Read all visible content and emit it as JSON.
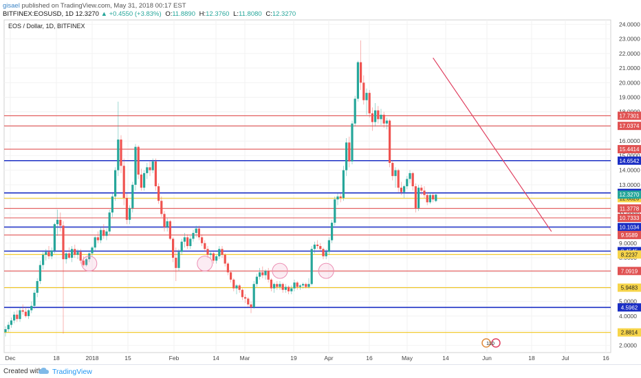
{
  "header": {
    "author": "gisael",
    "published": "published on TradingView.com, May 31, 2018 00:17 EST",
    "symbol": "BITFINEX:EOSUSD, 1D",
    "last": "12.3270",
    "change": "+0.4550 (+3.83%)",
    "o_label": "O:",
    "o_value": "11.8890",
    "h_label": "H:",
    "h_value": "12.3760",
    "l_label": "L:",
    "l_value": "11.8080",
    "c_label": "C:",
    "c_value": "12.3270"
  },
  "chart_data": {
    "type": "candlestick",
    "title": "EOS / Dollar, 1D, BITFINEX",
    "ylim": [
      1.5,
      24.3
    ],
    "y_ticks": [
      "2.0000",
      "3.0000",
      "4.0000",
      "5.0000",
      "6.0000",
      "7.0000",
      "8.0000",
      "9.0000",
      "10.0000",
      "11.0000",
      "12.0000",
      "13.0000",
      "14.0000",
      "15.0000",
      "16.0000",
      "17.0000",
      "18.0000",
      "19.0000",
      "20.0000",
      "21.0000",
      "22.0000",
      "23.0000",
      "24.0000"
    ],
    "x_ticks": [
      "Dec",
      "18",
      "2018",
      "15",
      "Feb",
      "14",
      "Mar",
      "19",
      "Apr",
      "16",
      "May",
      "14",
      "Jun",
      "18",
      "Jul",
      "16"
    ],
    "candles": [
      {
        "o": 2.9,
        "h": 3.3,
        "l": 2.6,
        "c": 3.1
      },
      {
        "o": 3.1,
        "h": 3.6,
        "l": 2.9,
        "c": 3.4
      },
      {
        "o": 3.4,
        "h": 3.9,
        "l": 3.2,
        "c": 3.7
      },
      {
        "o": 3.7,
        "h": 4.3,
        "l": 3.5,
        "c": 4.1
      },
      {
        "o": 4.1,
        "h": 4.4,
        "l": 3.6,
        "c": 3.8
      },
      {
        "o": 3.8,
        "h": 4.6,
        "l": 3.6,
        "c": 4.4
      },
      {
        "o": 4.4,
        "h": 4.8,
        "l": 4.1,
        "c": 4.3
      },
      {
        "o": 4.3,
        "h": 4.6,
        "l": 3.9,
        "c": 4.0
      },
      {
        "o": 4.0,
        "h": 4.5,
        "l": 3.8,
        "c": 4.4
      },
      {
        "o": 4.4,
        "h": 5.0,
        "l": 4.2,
        "c": 4.7
      },
      {
        "o": 4.7,
        "h": 5.8,
        "l": 4.5,
        "c": 5.6
      },
      {
        "o": 5.6,
        "h": 6.6,
        "l": 5.3,
        "c": 6.4
      },
      {
        "o": 6.4,
        "h": 7.8,
        "l": 6.2,
        "c": 7.5
      },
      {
        "o": 7.5,
        "h": 8.4,
        "l": 7.2,
        "c": 8.2
      },
      {
        "o": 8.2,
        "h": 8.6,
        "l": 7.8,
        "c": 8.4
      },
      {
        "o": 8.4,
        "h": 8.8,
        "l": 7.9,
        "c": 8.1
      },
      {
        "o": 8.1,
        "h": 8.7,
        "l": 7.9,
        "c": 8.5
      },
      {
        "o": 8.5,
        "h": 10.4,
        "l": 8.3,
        "c": 10.3
      },
      {
        "o": 10.3,
        "h": 11.3,
        "l": 9.5,
        "c": 10.6
      },
      {
        "o": 10.6,
        "h": 11.1,
        "l": 9.8,
        "c": 10.2
      },
      {
        "o": 10.2,
        "h": 10.5,
        "l": 2.8,
        "c": 7.9
      },
      {
        "o": 7.9,
        "h": 8.4,
        "l": 7.6,
        "c": 8.3
      },
      {
        "o": 8.3,
        "h": 8.7,
        "l": 7.9,
        "c": 8.0
      },
      {
        "o": 8.0,
        "h": 8.8,
        "l": 7.7,
        "c": 8.6
      },
      {
        "o": 8.6,
        "h": 8.9,
        "l": 8.0,
        "c": 8.2
      },
      {
        "o": 8.2,
        "h": 8.6,
        "l": 7.9,
        "c": 8.4
      },
      {
        "o": 8.4,
        "h": 8.6,
        "l": 7.6,
        "c": 7.8
      },
      {
        "o": 7.8,
        "h": 8.1,
        "l": 7.4,
        "c": 7.5
      },
      {
        "o": 7.5,
        "h": 8.0,
        "l": 7.4,
        "c": 7.9
      },
      {
        "o": 7.9,
        "h": 8.4,
        "l": 7.7,
        "c": 8.3
      },
      {
        "o": 8.3,
        "h": 8.8,
        "l": 8.1,
        "c": 8.7
      },
      {
        "o": 8.7,
        "h": 9.5,
        "l": 8.5,
        "c": 9.4
      },
      {
        "o": 9.4,
        "h": 9.8,
        "l": 9.0,
        "c": 9.2
      },
      {
        "o": 9.2,
        "h": 10.1,
        "l": 9.0,
        "c": 9.9
      },
      {
        "o": 9.9,
        "h": 10.3,
        "l": 9.3,
        "c": 9.5
      },
      {
        "o": 9.5,
        "h": 10.0,
        "l": 9.2,
        "c": 9.8
      },
      {
        "o": 9.8,
        "h": 11.3,
        "l": 9.6,
        "c": 11.1
      },
      {
        "o": 11.1,
        "h": 12.4,
        "l": 10.8,
        "c": 12.2
      },
      {
        "o": 12.2,
        "h": 14.2,
        "l": 11.9,
        "c": 14.0
      },
      {
        "o": 14.0,
        "h": 18.7,
        "l": 13.6,
        "c": 16.1
      },
      {
        "o": 16.1,
        "h": 16.4,
        "l": 13.8,
        "c": 14.3
      },
      {
        "o": 14.3,
        "h": 14.8,
        "l": 11.6,
        "c": 12.1
      },
      {
        "o": 12.1,
        "h": 12.4,
        "l": 10.3,
        "c": 10.6
      },
      {
        "o": 10.6,
        "h": 11.6,
        "l": 10.3,
        "c": 11.4
      },
      {
        "o": 11.4,
        "h": 13.2,
        "l": 11.1,
        "c": 13.0
      },
      {
        "o": 13.0,
        "h": 15.8,
        "l": 12.6,
        "c": 15.6
      },
      {
        "o": 15.6,
        "h": 15.7,
        "l": 13.4,
        "c": 13.7
      },
      {
        "o": 13.7,
        "h": 14.1,
        "l": 12.6,
        "c": 12.8
      },
      {
        "o": 12.8,
        "h": 14.0,
        "l": 12.6,
        "c": 13.8
      },
      {
        "o": 13.8,
        "h": 14.5,
        "l": 13.4,
        "c": 14.2
      },
      {
        "o": 14.2,
        "h": 14.6,
        "l": 13.6,
        "c": 14.0
      },
      {
        "o": 14.0,
        "h": 14.8,
        "l": 13.8,
        "c": 14.6
      },
      {
        "o": 14.6,
        "h": 14.8,
        "l": 12.6,
        "c": 12.9
      },
      {
        "o": 12.9,
        "h": 13.1,
        "l": 11.7,
        "c": 11.9
      },
      {
        "o": 11.9,
        "h": 12.2,
        "l": 10.8,
        "c": 11.0
      },
      {
        "o": 11.0,
        "h": 11.2,
        "l": 9.8,
        "c": 10.1
      },
      {
        "o": 10.1,
        "h": 10.7,
        "l": 9.8,
        "c": 10.5
      },
      {
        "o": 10.5,
        "h": 10.6,
        "l": 9.2,
        "c": 9.3
      },
      {
        "o": 9.3,
        "h": 9.4,
        "l": 7.7,
        "c": 8.0
      },
      {
        "o": 8.0,
        "h": 8.7,
        "l": 6.4,
        "c": 7.3
      },
      {
        "o": 7.3,
        "h": 8.6,
        "l": 7.1,
        "c": 8.4
      },
      {
        "o": 8.4,
        "h": 9.3,
        "l": 8.2,
        "c": 9.1
      },
      {
        "o": 9.1,
        "h": 9.7,
        "l": 8.7,
        "c": 9.4
      },
      {
        "o": 9.4,
        "h": 9.6,
        "l": 8.6,
        "c": 8.8
      },
      {
        "o": 8.8,
        "h": 9.5,
        "l": 8.6,
        "c": 9.3
      },
      {
        "o": 9.3,
        "h": 9.9,
        "l": 9.1,
        "c": 9.7
      },
      {
        "o": 9.7,
        "h": 10.2,
        "l": 9.4,
        "c": 10.0
      },
      {
        "o": 10.0,
        "h": 10.2,
        "l": 9.2,
        "c": 9.4
      },
      {
        "o": 9.4,
        "h": 9.6,
        "l": 8.8,
        "c": 9.0
      },
      {
        "o": 9.0,
        "h": 9.2,
        "l": 8.4,
        "c": 8.6
      },
      {
        "o": 8.6,
        "h": 8.8,
        "l": 8.0,
        "c": 8.2
      },
      {
        "o": 8.2,
        "h": 8.5,
        "l": 7.9,
        "c": 8.3
      },
      {
        "o": 8.3,
        "h": 8.4,
        "l": 7.6,
        "c": 7.8
      },
      {
        "o": 7.8,
        "h": 8.2,
        "l": 7.6,
        "c": 8.1
      },
      {
        "o": 8.1,
        "h": 8.8,
        "l": 7.9,
        "c": 8.6
      },
      {
        "o": 8.6,
        "h": 8.8,
        "l": 8.0,
        "c": 8.2
      },
      {
        "o": 8.2,
        "h": 8.3,
        "l": 7.4,
        "c": 7.6
      },
      {
        "o": 7.6,
        "h": 7.7,
        "l": 6.8,
        "c": 7.0
      },
      {
        "o": 7.0,
        "h": 7.1,
        "l": 6.3,
        "c": 6.5
      },
      {
        "o": 6.5,
        "h": 6.6,
        "l": 5.7,
        "c": 5.9
      },
      {
        "o": 5.9,
        "h": 6.2,
        "l": 5.5,
        "c": 6.1
      },
      {
        "o": 6.1,
        "h": 6.2,
        "l": 5.6,
        "c": 5.8
      },
      {
        "o": 5.8,
        "h": 5.9,
        "l": 5.1,
        "c": 5.3
      },
      {
        "o": 5.3,
        "h": 5.5,
        "l": 4.9,
        "c": 5.2
      },
      {
        "o": 5.2,
        "h": 5.3,
        "l": 4.6,
        "c": 4.8
      },
      {
        "o": 4.8,
        "h": 5.0,
        "l": 4.2,
        "c": 4.6
      },
      {
        "o": 4.6,
        "h": 6.4,
        "l": 4.5,
        "c": 6.2
      },
      {
        "o": 6.2,
        "h": 6.9,
        "l": 6.0,
        "c": 6.7
      },
      {
        "o": 6.7,
        "h": 7.3,
        "l": 6.5,
        "c": 7.0
      },
      {
        "o": 7.0,
        "h": 7.4,
        "l": 6.6,
        "c": 6.8
      },
      {
        "o": 6.8,
        "h": 7.2,
        "l": 6.5,
        "c": 7.1
      },
      {
        "o": 7.1,
        "h": 7.3,
        "l": 6.3,
        "c": 6.5
      },
      {
        "o": 6.5,
        "h": 6.6,
        "l": 5.7,
        "c": 5.9
      },
      {
        "o": 5.9,
        "h": 6.3,
        "l": 5.6,
        "c": 6.2
      },
      {
        "o": 6.2,
        "h": 6.4,
        "l": 5.8,
        "c": 6.0
      },
      {
        "o": 6.0,
        "h": 6.4,
        "l": 5.8,
        "c": 6.2
      },
      {
        "o": 6.2,
        "h": 6.3,
        "l": 5.6,
        "c": 5.8
      },
      {
        "o": 5.8,
        "h": 6.2,
        "l": 5.6,
        "c": 6.0
      },
      {
        "o": 6.0,
        "h": 6.1,
        "l": 5.5,
        "c": 5.7
      },
      {
        "o": 5.7,
        "h": 6.1,
        "l": 5.5,
        "c": 5.9
      },
      {
        "o": 5.9,
        "h": 6.5,
        "l": 5.7,
        "c": 6.3
      },
      {
        "o": 6.3,
        "h": 6.4,
        "l": 5.8,
        "c": 6.0
      },
      {
        "o": 6.0,
        "h": 6.2,
        "l": 5.8,
        "c": 6.1
      },
      {
        "o": 6.1,
        "h": 6.3,
        "l": 5.9,
        "c": 6.2
      },
      {
        "o": 6.2,
        "h": 6.3,
        "l": 5.9,
        "c": 6.0
      },
      {
        "o": 6.0,
        "h": 6.6,
        "l": 5.9,
        "c": 6.2
      },
      {
        "o": 6.2,
        "h": 8.8,
        "l": 6.1,
        "c": 8.6
      },
      {
        "o": 8.6,
        "h": 9.1,
        "l": 8.3,
        "c": 8.9
      },
      {
        "o": 8.9,
        "h": 9.2,
        "l": 8.6,
        "c": 8.8
      },
      {
        "o": 8.8,
        "h": 9.0,
        "l": 8.4,
        "c": 8.6
      },
      {
        "o": 8.6,
        "h": 8.7,
        "l": 7.9,
        "c": 8.1
      },
      {
        "o": 8.1,
        "h": 8.6,
        "l": 7.9,
        "c": 8.4
      },
      {
        "o": 8.4,
        "h": 9.4,
        "l": 8.2,
        "c": 9.2
      },
      {
        "o": 9.2,
        "h": 10.6,
        "l": 9.0,
        "c": 10.4
      },
      {
        "o": 10.4,
        "h": 12.2,
        "l": 10.2,
        "c": 12.0
      },
      {
        "o": 12.0,
        "h": 12.4,
        "l": 11.6,
        "c": 12.2
      },
      {
        "o": 12.2,
        "h": 12.4,
        "l": 11.8,
        "c": 12.1
      },
      {
        "o": 12.1,
        "h": 14.3,
        "l": 11.9,
        "c": 14.0
      },
      {
        "o": 14.0,
        "h": 16.2,
        "l": 13.6,
        "c": 15.9
      },
      {
        "o": 15.9,
        "h": 16.3,
        "l": 14.2,
        "c": 14.6
      },
      {
        "o": 14.6,
        "h": 17.4,
        "l": 14.4,
        "c": 17.2
      },
      {
        "o": 17.2,
        "h": 19.1,
        "l": 17.0,
        "c": 18.9
      },
      {
        "o": 18.9,
        "h": 21.5,
        "l": 18.7,
        "c": 21.4
      },
      {
        "o": 21.4,
        "h": 22.9,
        "l": 19.5,
        "c": 20.0
      },
      {
        "o": 20.0,
        "h": 20.5,
        "l": 18.5,
        "c": 18.8
      },
      {
        "o": 18.8,
        "h": 19.6,
        "l": 17.8,
        "c": 19.3
      },
      {
        "o": 19.3,
        "h": 19.5,
        "l": 17.6,
        "c": 17.9
      },
      {
        "o": 17.9,
        "h": 18.3,
        "l": 16.7,
        "c": 17.3
      },
      {
        "o": 17.3,
        "h": 18.6,
        "l": 17.0,
        "c": 18.1
      },
      {
        "o": 18.1,
        "h": 18.4,
        "l": 17.2,
        "c": 17.5
      },
      {
        "o": 17.5,
        "h": 18.2,
        "l": 17.1,
        "c": 17.8
      },
      {
        "o": 17.8,
        "h": 18.0,
        "l": 16.9,
        "c": 17.2
      },
      {
        "o": 17.2,
        "h": 17.6,
        "l": 16.8,
        "c": 17.4
      },
      {
        "o": 17.4,
        "h": 17.5,
        "l": 14.2,
        "c": 14.5
      },
      {
        "o": 14.5,
        "h": 14.7,
        "l": 13.3,
        "c": 13.6
      },
      {
        "o": 13.6,
        "h": 14.2,
        "l": 12.8,
        "c": 14.0
      },
      {
        "o": 14.0,
        "h": 14.1,
        "l": 12.5,
        "c": 12.8
      },
      {
        "o": 12.8,
        "h": 13.2,
        "l": 12.3,
        "c": 12.5
      },
      {
        "o": 12.5,
        "h": 13.0,
        "l": 12.1,
        "c": 12.9
      },
      {
        "o": 12.9,
        "h": 13.6,
        "l": 12.7,
        "c": 13.4
      },
      {
        "o": 13.4,
        "h": 14.0,
        "l": 13.1,
        "c": 13.8
      },
      {
        "o": 13.8,
        "h": 13.9,
        "l": 12.6,
        "c": 12.9
      },
      {
        "o": 12.9,
        "h": 13.1,
        "l": 11.1,
        "c": 11.4
      },
      {
        "o": 11.4,
        "h": 13.0,
        "l": 11.2,
        "c": 12.8
      },
      {
        "o": 12.8,
        "h": 13.0,
        "l": 12.3,
        "c": 12.6
      },
      {
        "o": 12.6,
        "h": 12.9,
        "l": 12.1,
        "c": 12.3
      },
      {
        "o": 12.3,
        "h": 12.5,
        "l": 11.6,
        "c": 11.8
      },
      {
        "o": 11.8,
        "h": 12.5,
        "l": 11.7,
        "c": 12.3
      },
      {
        "o": 12.3,
        "h": 12.4,
        "l": 11.8,
        "c": 12.0
      },
      {
        "o": 11.889,
        "h": 12.376,
        "l": 11.808,
        "c": 12.327
      }
    ],
    "h_lines": [
      {
        "y": 17.7301,
        "label": "17.7301",
        "color": "#e05252",
        "kind": "red"
      },
      {
        "y": 17.0374,
        "label": "17.0374",
        "color": "#e05252",
        "kind": "red"
      },
      {
        "y": 15.4414,
        "label": "15.4414",
        "color": "#e05252",
        "kind": "red"
      },
      {
        "y": 14.6542,
        "label": "14.6542",
        "color": "#1a2ec4",
        "kind": "blue"
      },
      {
        "y": 12.4447,
        "label": "12.4447",
        "color": "#1a2ec4",
        "kind": "blue"
      },
      {
        "y": 12.082,
        "label": "12.0820",
        "color": "#f0c419",
        "kind": "yellow"
      },
      {
        "y": 11.3778,
        "label": "11.3778",
        "color": "#e05252",
        "kind": "red"
      },
      {
        "y": 10.7333,
        "label": "10.7333",
        "color": "#e05252",
        "kind": "red"
      },
      {
        "y": 10.1034,
        "label": "10.1034",
        "color": "#1a2ec4",
        "kind": "blue"
      },
      {
        "y": 9.5589,
        "label": "9.5589",
        "color": "#e05252",
        "kind": "red"
      },
      {
        "y": 8.4545,
        "label": "8.4545",
        "color": "#1a2ec4",
        "kind": "blue"
      },
      {
        "y": 8.2237,
        "label": "8.2237",
        "color": "#f0c419",
        "kind": "yellow"
      },
      {
        "y": 7.0919,
        "label": "7.0919",
        "color": "#e05252",
        "kind": "red"
      },
      {
        "y": 5.9483,
        "label": "5.9483",
        "color": "#f0c419",
        "kind": "yellow"
      },
      {
        "y": 4.5962,
        "label": "4.5962",
        "color": "#1a2ec4",
        "kind": "blue"
      },
      {
        "y": 2.8814,
        "label": "2.8814",
        "color": "#f0c419",
        "kind": "yellow"
      }
    ],
    "last_price": {
      "y": 12.327,
      "label": "12.3270",
      "color": "#26a69a"
    },
    "trendline": {
      "from": {
        "i": 148,
        "y": 21.7
      },
      "to": {
        "i": 189,
        "y": 9.8
      },
      "color": "#e04060"
    },
    "circles": [
      {
        "i": 29,
        "y": 7.6
      },
      {
        "i": 69,
        "y": 7.6
      },
      {
        "i": 95,
        "y": 7.1
      },
      {
        "i": 111,
        "y": 7.1
      }
    ],
    "events_label": "110",
    "colors": {
      "up": "#26a69a",
      "down": "#ef5350",
      "background": "#ffffff",
      "grid": "#f2f2f2"
    }
  },
  "footer": {
    "created_with": "Created with",
    "brand": "TradingView"
  }
}
